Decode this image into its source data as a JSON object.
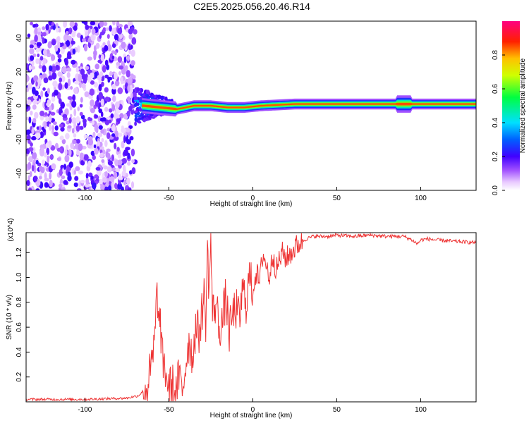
{
  "title": "C2E5.2025.056.20.46.R14",
  "chart_data": [
    {
      "type": "heatmap",
      "xlabel": "Height of straight line (km)",
      "ylabel": "Frequency (Hz)",
      "xlim": [
        -135,
        133
      ],
      "ylim": [
        -50,
        50
      ],
      "xticks": [
        -100,
        -50,
        0,
        50,
        100
      ],
      "yticks": [
        -40,
        -20,
        0,
        20,
        40
      ],
      "colorbar": {
        "label": "Normalized spectral amplitude",
        "range": [
          0.0,
          1.0
        ],
        "ticks": [
          0.0,
          0.2,
          0.4,
          0.6,
          0.8
        ],
        "colormap": "rainbow (white-purple-blue-cyan-green-yellow-orange-red-magenta)"
      },
      "regions": [
        {
          "x_range": [
            -135,
            -70
          ],
          "description": "broadband noise, amplitude 0.0-0.3"
        },
        {
          "x_range": [
            -70,
            -48
          ],
          "description": "transition, energy concentrated near 0 Hz, amplitude 0.2-0.6"
        },
        {
          "x_range": [
            -48,
            133
          ],
          "description": "narrow band near 0-2 Hz, amplitude 0.6-1.0"
        }
      ],
      "ridge": [
        {
          "x": -65,
          "y": 0
        },
        {
          "x": -55,
          "y": -1
        },
        {
          "x": -45,
          "y": -2
        },
        {
          "x": -35,
          "y": 0
        },
        {
          "x": -25,
          "y": 0
        },
        {
          "x": -15,
          "y": -1
        },
        {
          "x": -5,
          "y": -1
        },
        {
          "x": 5,
          "y": 0
        },
        {
          "x": 25,
          "y": 1
        },
        {
          "x": 50,
          "y": 1
        },
        {
          "x": 90,
          "y": 1
        },
        {
          "x": 133,
          "y": 1
        }
      ]
    },
    {
      "type": "line",
      "xlabel": "Height of straight line (km)",
      "ylabel": "SNR (10 * v/v)",
      "yscale_label": "(x10^4)",
      "xlim": [
        -135,
        133
      ],
      "ylim": [
        0,
        1.36
      ],
      "xticks": [
        -100,
        -50,
        0,
        50,
        100
      ],
      "yticks": [
        0.2,
        0.4,
        0.6,
        0.8,
        1.0,
        1.2
      ],
      "series": [
        {
          "color": "#ee3333",
          "x": [
            -135,
            -100,
            -75,
            -68,
            -63,
            -60,
            -58,
            -57,
            -56,
            -55,
            -54,
            -52,
            -50,
            -48,
            -46,
            -44,
            -42,
            -40,
            -38,
            -36,
            -34,
            -32,
            -30,
            -29,
            -28,
            -27,
            -26,
            -25,
            -24,
            -22,
            -20,
            -18,
            -16,
            -14,
            -12,
            -10,
            -8,
            -6,
            -4,
            -2,
            0,
            2,
            4,
            6,
            8,
            10,
            12,
            14,
            16,
            18,
            20,
            24,
            28,
            32,
            36,
            40,
            45,
            50,
            60,
            70,
            80,
            90,
            95,
            98,
            100,
            104,
            110,
            120,
            133
          ],
          "y": [
            0.02,
            0.02,
            0.03,
            0.05,
            0.12,
            0.3,
            0.55,
            0.95,
            0.6,
            0.65,
            0.35,
            0.25,
            0.1,
            0.15,
            0.05,
            0.2,
            0.08,
            0.3,
            0.5,
            0.35,
            0.6,
            0.55,
            0.75,
            0.85,
            0.65,
            1.2,
            0.9,
            1.32,
            0.7,
            0.8,
            0.6,
            0.65,
            0.85,
            0.55,
            0.7,
            0.75,
            0.65,
            0.9,
            0.8,
            1.0,
            0.9,
            1.05,
            0.95,
            1.2,
            1.1,
            1.0,
            1.2,
            1.05,
            1.15,
            1.2,
            1.15,
            1.22,
            1.28,
            1.31,
            1.33,
            1.33,
            1.33,
            1.34,
            1.33,
            1.34,
            1.33,
            1.33,
            1.3,
            1.27,
            1.3,
            1.31,
            1.3,
            1.29,
            1.28
          ]
        }
      ]
    }
  ]
}
